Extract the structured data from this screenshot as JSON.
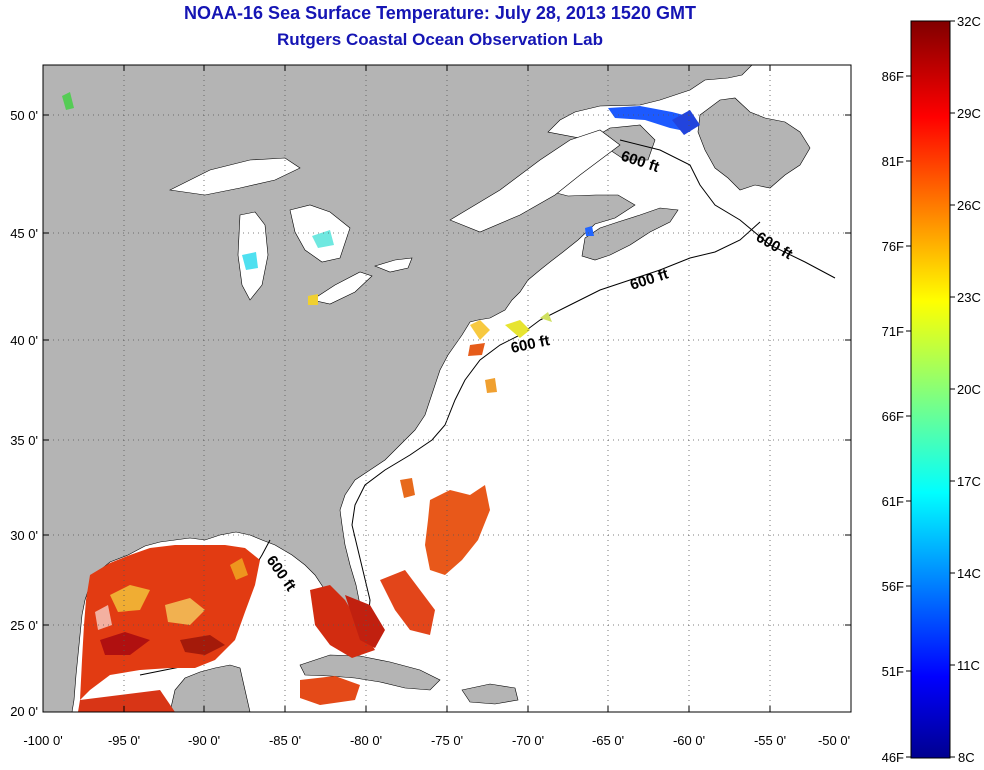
{
  "header": {
    "title": "NOAA-16 Sea Surface Temperature:  July 28, 2013 1520 GMT",
    "subtitle": "Rutgers Coastal Ocean Observation Lab"
  },
  "map": {
    "x_ticks": [
      "-100 0'",
      "-95 0'",
      "-90 0'",
      "-85 0'",
      "-80 0'",
      "-75 0'",
      "-70 0'",
      "-65 0'",
      "-60 0'",
      "-55 0'",
      "-50 0'"
    ],
    "y_ticks": [
      "50 0'",
      "45 0'",
      "40 0'",
      "35 0'",
      "30 0'",
      "25 0'",
      "20 0'"
    ],
    "lon_range": [
      -100,
      -50
    ],
    "lat_range": [
      20,
      52
    ],
    "isobath_labels": [
      "600 ft",
      "600 ft",
      "600 ft",
      "600 ft",
      "600 ft"
    ],
    "colors": {
      "land": "#b4b4b4",
      "ocean_nodata": "#ffffff"
    }
  },
  "colorbar": {
    "celsius_labels": [
      "32C",
      "29C",
      "26C",
      "23C",
      "20C",
      "17C",
      "14C",
      "11C",
      "8C"
    ],
    "fahrenheit_labels": [
      "86F",
      "81F",
      "76F",
      "71F",
      "66F",
      "61F",
      "56F",
      "51F",
      "46F"
    ],
    "range_c": [
      8,
      32
    ],
    "colormap": "jet"
  }
}
